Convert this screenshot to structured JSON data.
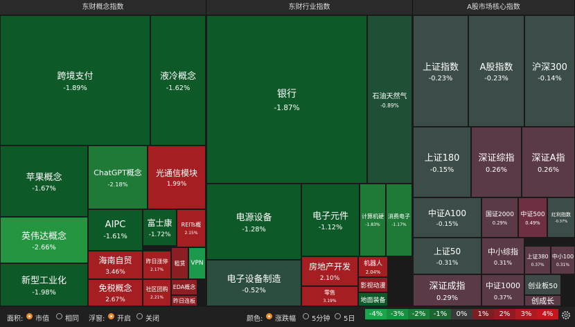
{
  "panels": [
    {
      "title": "东财概念指数",
      "tiles": [
        {
          "name": "跨境支付",
          "change": "-1.89%"
        },
        {
          "name": "液冷概念",
          "change": "-1.62%"
        },
        {
          "name": "苹果概念",
          "change": "-1.67%"
        },
        {
          "name": "ChatGPT概念",
          "change": "-2.18%"
        },
        {
          "name": "光通信模块",
          "change": "1.99%"
        },
        {
          "name": "英伟达概念",
          "change": "-2.66%"
        },
        {
          "name": "AIPC",
          "change": "-1.61%"
        },
        {
          "name": "富士康",
          "change": "-1.72%"
        },
        {
          "name": "REITs概",
          "change": "2.15%"
        },
        {
          "name": "新型工业化",
          "change": "-1.98%"
        },
        {
          "name": "海南自贸",
          "change": "3.46%"
        },
        {
          "name": "免税概念",
          "change": "2.67%"
        },
        {
          "name": "昨日涨停",
          "change": "2.17%"
        },
        {
          "name": "租赁"
        },
        {
          "name": "VPN"
        },
        {
          "name": "社区团购",
          "change": "2.21%"
        },
        {
          "name": "EDA概念"
        },
        {
          "name": "昨日连板"
        }
      ]
    },
    {
      "title": "东财行业指数",
      "tiles": [
        {
          "name": "银行",
          "change": "-1.87%"
        },
        {
          "name": "石油天然气",
          "change": "-0.89%"
        },
        {
          "name": "电源设备",
          "change": "-1.28%"
        },
        {
          "name": "电子设备制造",
          "change": "-0.52%"
        },
        {
          "name": "电子元件",
          "change": "-1.12%"
        },
        {
          "name": "计算机硬",
          "change": "-1.83%"
        },
        {
          "name": "消费电子",
          "change": "-1.17%"
        },
        {
          "name": "房地产开发",
          "change": "2.10%"
        },
        {
          "name": "零售",
          "change": "3.19%"
        },
        {
          "name": "机器人",
          "change": "2.04%"
        },
        {
          "name": "影视动漫"
        },
        {
          "name": "地面装备"
        }
      ]
    },
    {
      "title": "A股市场核心指数",
      "tiles": [
        {
          "name": "上证指数",
          "change": "-0.23%"
        },
        {
          "name": "A股指数",
          "change": "-0.23%"
        },
        {
          "name": "沪深300",
          "change": "-0.14%"
        },
        {
          "name": "上证180",
          "change": "-0.15%"
        },
        {
          "name": "深证综指",
          "change": "0.26%"
        },
        {
          "name": "深证A指",
          "change": "0.26%"
        },
        {
          "name": "中证A100",
          "change": "-0.15%"
        },
        {
          "name": "国证2000",
          "change": "0.29%"
        },
        {
          "name": "中证500",
          "change": "0.49%"
        },
        {
          "name": "红利指数",
          "change": "-0.37%"
        },
        {
          "name": "上证50",
          "change": "-0.31%"
        },
        {
          "name": "深证成指",
          "change": "0.29%"
        },
        {
          "name": "中小综指",
          "change": "0.31%"
        },
        {
          "name": "上证380",
          "change": "0.37%"
        },
        {
          "name": "中小100",
          "change": "0.31%"
        },
        {
          "name": "中证1000",
          "change": "0.37%"
        },
        {
          "name": "创业板50"
        },
        {
          "name": "创成长"
        }
      ]
    }
  ],
  "toolbar": {
    "area": {
      "label": "面积:",
      "options": [
        "市值",
        "相同"
      ]
    },
    "float": {
      "label": "浮窗:",
      "options": [
        "开启",
        "关闭"
      ]
    },
    "color": {
      "label": "颜色:",
      "options": [
        "涨跌幅",
        "5分钟",
        "5日"
      ]
    },
    "legend": [
      "-4%",
      "-3%",
      "-2%",
      "-1%",
      "0%",
      "1%",
      "2%",
      "3%",
      "4%"
    ]
  }
}
